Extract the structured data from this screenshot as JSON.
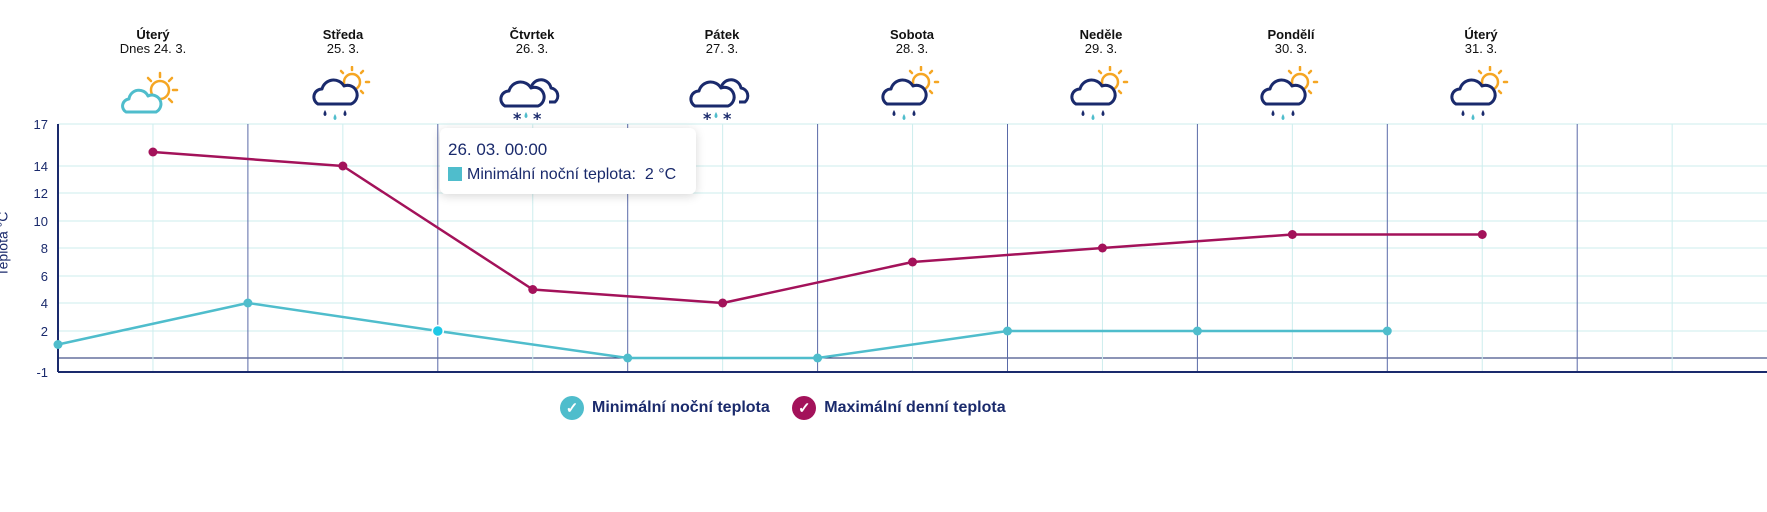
{
  "days": [
    {
      "name": "Úterý",
      "date": "Dnes 24. 3.",
      "icon": "cloud-sun-icon"
    },
    {
      "name": "Středa",
      "date": "25. 3.",
      "icon": "rain-sun-icon"
    },
    {
      "name": "Čtvrtek",
      "date": "26. 3.",
      "icon": "snow-rain-icon"
    },
    {
      "name": "Pátek",
      "date": "27. 3.",
      "icon": "snow-rain-icon"
    },
    {
      "name": "Sobota",
      "date": "28. 3.",
      "icon": "rain-sun-icon"
    },
    {
      "name": "Neděle",
      "date": "29. 3.",
      "icon": "rain-sun-icon"
    },
    {
      "name": "Pondělí",
      "date": "30. 3.",
      "icon": "rain-sun-icon"
    },
    {
      "name": "Úterý",
      "date": "31. 3.",
      "icon": "rain-sun-icon"
    }
  ],
  "tooltip": {
    "time": "26. 03. 00:00",
    "label": "Minimální noční teplota:",
    "value": "2 °C"
  },
  "legend": {
    "min_label": "Minimální noční teplota",
    "max_label": "Maximální denní teplota",
    "check_glyph": "✓"
  },
  "colors": {
    "min": "#4fbdcc",
    "max": "#a3125a",
    "axis": "#1a2a6c",
    "grid": "#cdeeee",
    "sun": "#f5a623",
    "cloud_light": "#4fbdcc",
    "cloud_dark": "#1a2a6c"
  },
  "chart_data": {
    "type": "line",
    "ylabel": "Teplota °C",
    "ylim": [
      -1,
      17
    ],
    "yticks": [
      -1,
      2,
      4,
      6,
      8,
      10,
      12,
      14,
      17
    ],
    "grid": true,
    "legend_position": "bottom",
    "series": [
      {
        "name": "Minimální noční teplota",
        "points": [
          {
            "x": "24. 3. 00:00",
            "y": 1
          },
          {
            "x": "25. 3. 00:00",
            "y": 4
          },
          {
            "x": "26. 3. 00:00",
            "y": 2
          },
          {
            "x": "27. 3. 00:00",
            "y": 0
          },
          {
            "x": "28. 3. 00:00",
            "y": 0
          },
          {
            "x": "29. 3. 00:00",
            "y": 2
          },
          {
            "x": "30. 3. 00:00",
            "y": 2
          },
          {
            "x": "31. 3. 00:00",
            "y": 2
          }
        ]
      },
      {
        "name": "Maximální denní teplota",
        "points": [
          {
            "x": "24. 3. 12:00",
            "y": 15
          },
          {
            "x": "25. 3. 12:00",
            "y": 14
          },
          {
            "x": "26. 3. 12:00",
            "y": 5
          },
          {
            "x": "27. 3. 12:00",
            "y": 4
          },
          {
            "x": "28. 3. 12:00",
            "y": 7
          },
          {
            "x": "29. 3. 12:00",
            "y": 8
          },
          {
            "x": "30. 3. 12:00",
            "y": 9
          },
          {
            "x": "31. 3. 12:00",
            "y": 9
          }
        ]
      }
    ]
  }
}
